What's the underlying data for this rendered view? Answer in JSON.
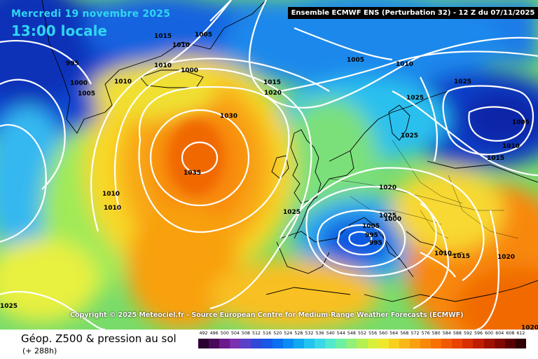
{
  "header": {
    "date": "Mercredi 19 novembre 2025",
    "time": "13:00 locale",
    "info": "Ensemble ECMWF ENS  (Perturbation 32)  -  12 Z du 07/11/2025"
  },
  "copyright": "Copyright © 2025 Meteociel.fr - Source European Centre for Medium-Range Weather Forecasts (ECMWF)",
  "footer": {
    "title": "Géop. Z500 & pression au sol",
    "subtitle": "(+ 288h)"
  },
  "scale": {
    "values": [
      "492",
      "496",
      "500",
      "504",
      "508",
      "512",
      "516",
      "520",
      "524",
      "528",
      "532",
      "536",
      "540",
      "544",
      "548",
      "552",
      "556",
      "560",
      "564",
      "568",
      "572",
      "576",
      "580",
      "584",
      "588",
      "592",
      "596",
      "600",
      "604",
      "608",
      "612"
    ],
    "colors": [
      "#2a0030",
      "#4a0a5a",
      "#6a1a8a",
      "#7b30b0",
      "#5a40c8",
      "#3048d8",
      "#1858e8",
      "#0a70f0",
      "#0a8cf4",
      "#10a8f0",
      "#22c4f0",
      "#3ad8e6",
      "#52e8cc",
      "#6cf0a4",
      "#90f07a",
      "#b4f052",
      "#d8f03a",
      "#f0e82e",
      "#f8d020",
      "#f8b818",
      "#f8a010",
      "#f88808",
      "#f87000",
      "#f05a00",
      "#e84400",
      "#d83000",
      "#c01e00",
      "#a01000",
      "#800800",
      "#580000",
      "#300000"
    ]
  },
  "isobars": [
    "1015",
    "1005",
    "1010",
    "1010",
    "1000",
    "995",
    "1000",
    "1005",
    "1010",
    "1015",
    "1020",
    "1030",
    "1035",
    "1010",
    "1010",
    "1025",
    "1005",
    "1010",
    "1025",
    "1025",
    "1025",
    "1005",
    "1010",
    "1015",
    "1020",
    "1025",
    "1005",
    "995",
    "1000",
    "995",
    "1010",
    "1015",
    "1020",
    "1020",
    "1025"
  ],
  "colors": {
    "deep_blue": "#0a32c8",
    "cyan": "#22c8f0",
    "green": "#88e060",
    "yellow": "#f8e030",
    "orange": "#f8a010",
    "isobar": "#ffffff",
    "coastline": "#000000"
  }
}
